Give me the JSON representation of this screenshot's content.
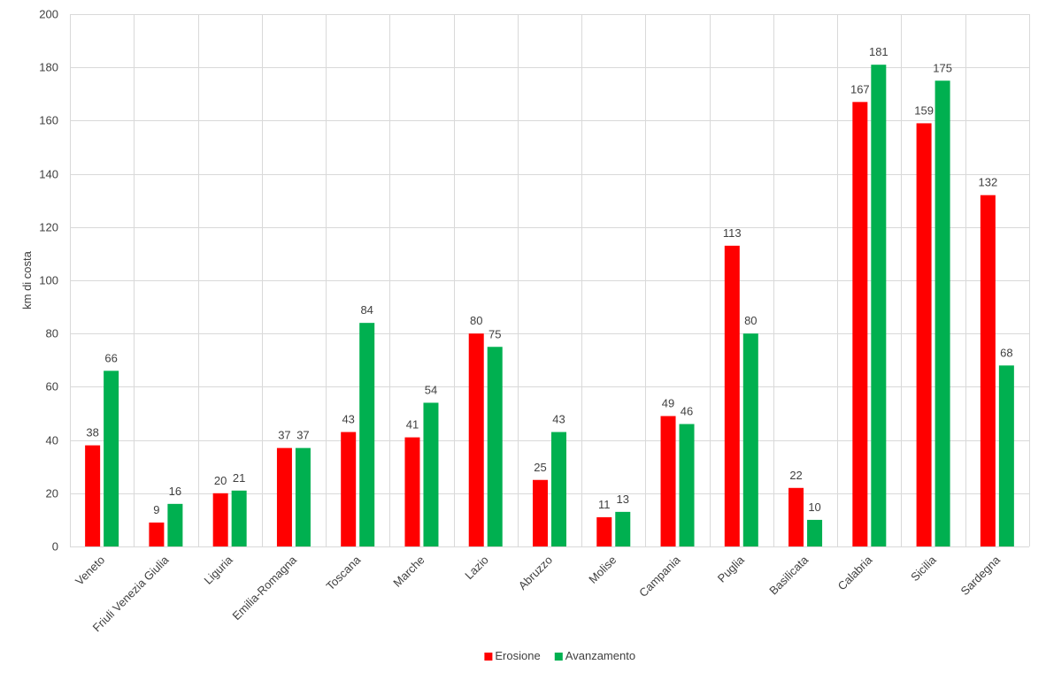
{
  "chart_data": {
    "type": "bar",
    "title": "",
    "xlabel": "",
    "ylabel": "km di costa",
    "ylim": [
      0,
      200
    ],
    "ytick_step": 20,
    "grid": {
      "horizontal": true,
      "vertical": true
    },
    "legend_position": "bottom",
    "categories": [
      "Veneto",
      "Friuli Venezia Giulia",
      "Liguria",
      "Emilia-Romagna",
      "Toscana",
      "Marche",
      "Lazio",
      "Abruzzo",
      "Molise",
      "Campania",
      "Puglia",
      "Basilicata",
      "Calabria",
      "Sicilia",
      "Sardegna"
    ],
    "series": [
      {
        "name": "Erosione",
        "color": "#ff0000",
        "values": [
          38,
          9,
          20,
          37,
          43,
          41,
          80,
          25,
          11,
          49,
          113,
          22,
          167,
          159,
          132
        ]
      },
      {
        "name": "Avanzamento",
        "color": "#00b050",
        "values": [
          66,
          16,
          21,
          37,
          84,
          54,
          75,
          43,
          13,
          46,
          80,
          10,
          181,
          175,
          68
        ]
      }
    ]
  }
}
